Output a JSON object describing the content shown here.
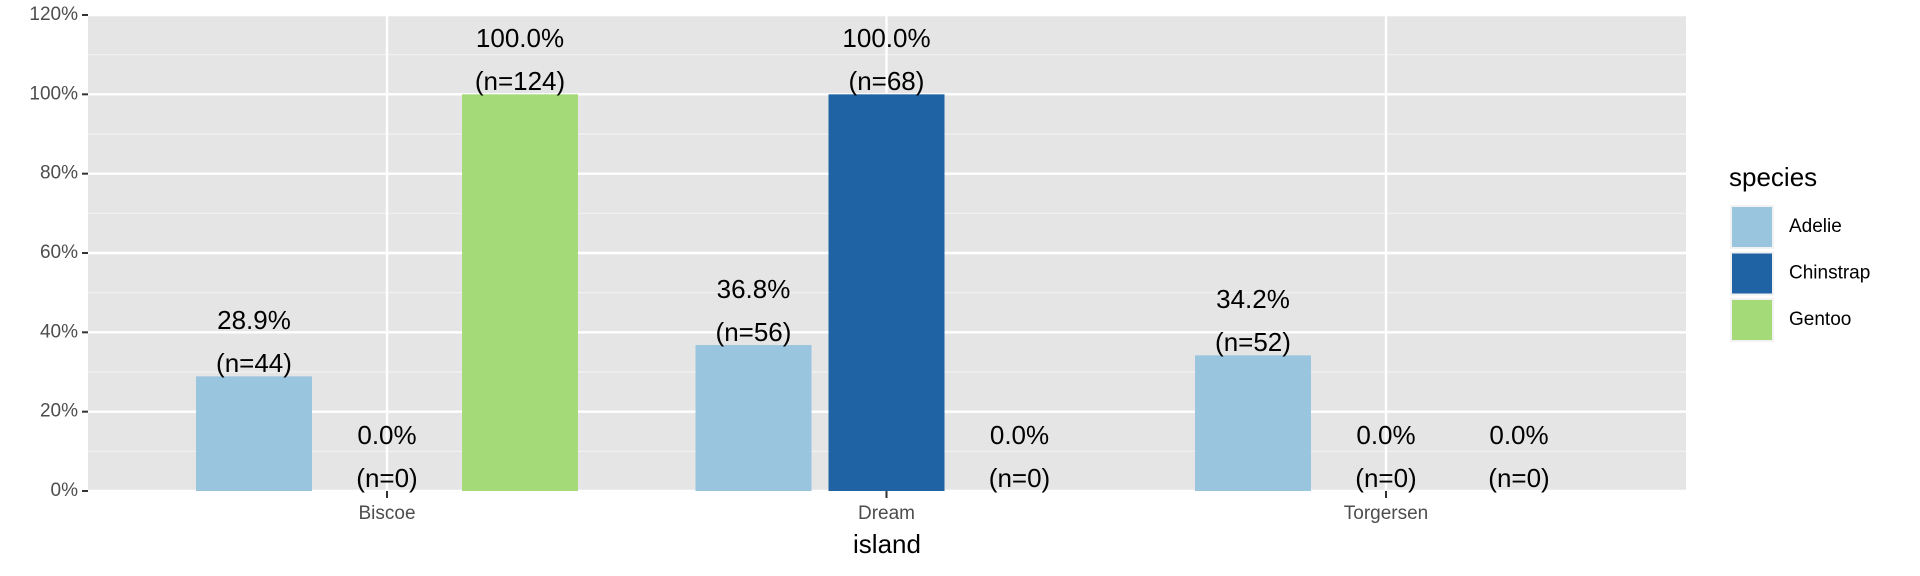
{
  "chart_data": {
    "type": "bar",
    "x_label": "island",
    "legend_title": "species",
    "categories": [
      "Biscoe",
      "Dream",
      "Torgersen"
    ],
    "series": [
      {
        "name": "Adelie",
        "color": "#9ac5de",
        "values": [
          28.9,
          36.8,
          34.2
        ],
        "value_labels": [
          "28.9%",
          "36.8%",
          "34.2%"
        ],
        "count_labels": [
          "(n=44)",
          "(n=56)",
          "(n=52)"
        ]
      },
      {
        "name": "Chinstrap",
        "color": "#1f63a5",
        "values": [
          0,
          100,
          0
        ],
        "value_labels": [
          "0.0%",
          "100.0%",
          "0.0%"
        ],
        "count_labels": [
          "(n=0)",
          "(n=68)",
          "(n=0)"
        ]
      },
      {
        "name": "Gentoo",
        "color": "#a4da78",
        "values": [
          100,
          0,
          0
        ],
        "value_labels": [
          "100.0%",
          "0.0%",
          "0.0%"
        ],
        "count_labels": [
          "(n=124)",
          "(n=0)",
          "(n=0)"
        ]
      }
    ],
    "ylim": [
      0,
      120
    ],
    "yticks": [
      {
        "value": 0,
        "label": "0%"
      },
      {
        "value": 20,
        "label": "20%"
      },
      {
        "value": 40,
        "label": "40%"
      },
      {
        "value": 60,
        "label": "60%"
      },
      {
        "value": 80,
        "label": "80%"
      },
      {
        "value": 100,
        "label": "100%"
      },
      {
        "value": 120,
        "label": "120%"
      }
    ],
    "grid": true,
    "legend_position": "right"
  }
}
